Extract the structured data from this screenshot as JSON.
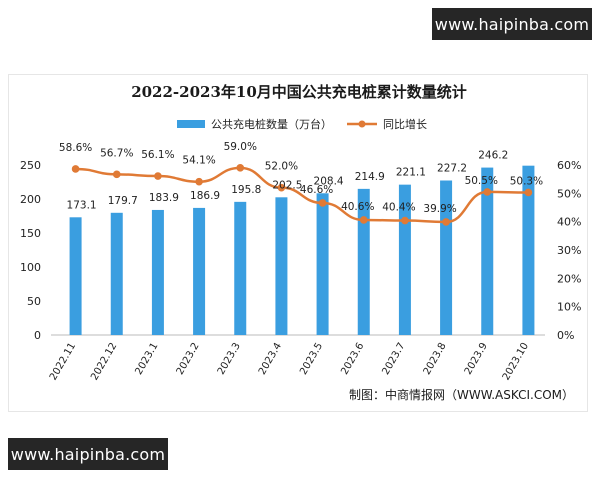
{
  "banners": {
    "top": "www.haipinba.com",
    "bottom": "www.haipinba.com"
  },
  "colors": {
    "bar": "#3a9ee0",
    "line": "#e07a35",
    "axis_text": "#222222",
    "grid": "#e8e8e8"
  },
  "chart_data": {
    "type": "bar",
    "title": "2022-2023年10月中国公共充电桩累计数量统计",
    "categories": [
      "2022.11",
      "2022.12",
      "2023.1",
      "2023.2",
      "2023.3",
      "2023.4",
      "2023.5",
      "2023.6",
      "2023.7",
      "2023.8",
      "2023.9",
      "2023.10"
    ],
    "series": [
      {
        "name": "公共充电桩数量（万台）",
        "type": "bar",
        "axis": "left",
        "values": [
          173.1,
          179.7,
          183.9,
          186.9,
          195.8,
          202.5,
          208.4,
          214.9,
          221.1,
          227.2,
          246.2,
          249.0
        ],
        "labels": [
          "173.1",
          "179.7",
          "183.9",
          "186.9",
          "195.8",
          "202.5",
          "208.4",
          "214.9",
          "221.1",
          "227.2",
          "246.2",
          ""
        ]
      },
      {
        "name": "同比增长",
        "type": "line",
        "axis": "right",
        "values": [
          58.6,
          56.7,
          56.1,
          54.1,
          59.0,
          52.0,
          46.6,
          40.6,
          40.4,
          39.9,
          50.5,
          50.3
        ],
        "labels": [
          "58.6%",
          "56.7%",
          "56.1%",
          "54.1%",
          "59.0%",
          "52.0%",
          "46.6%",
          "40.6%",
          "40.4%",
          "39.9%",
          "50.5%",
          "50.3%"
        ]
      }
    ],
    "ylim": [
      0,
      250
    ],
    "yticks": [
      "0",
      "50",
      "100",
      "150",
      "200",
      "250"
    ],
    "y2lim": [
      0,
      60
    ],
    "y2ticks": [
      "0%",
      "10%",
      "20%",
      "30%",
      "40%",
      "50%",
      "60%"
    ],
    "legend_position": "top-center",
    "grid": false,
    "source": "制图：中商情报网（WWW.ASKCI.COM）"
  }
}
